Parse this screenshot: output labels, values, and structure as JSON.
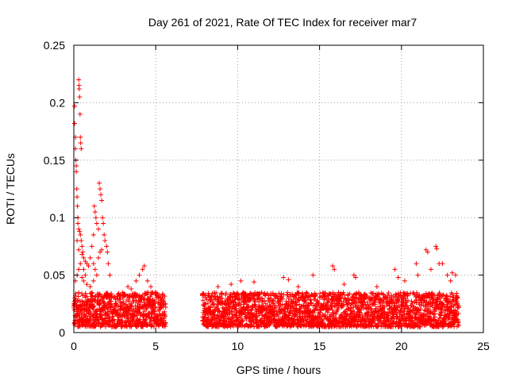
{
  "chart_data": {
    "type": "scatter",
    "title": "Day 261 of 2021, Rate Of TEC Index for receiver mar7",
    "xlabel": "GPS time / hours",
    "ylabel": "ROTI / TECUs",
    "xlim": [
      0,
      25
    ],
    "ylim": [
      0,
      0.25
    ],
    "xticks": [
      0,
      5,
      10,
      15,
      20,
      25
    ],
    "yticks": [
      0,
      0.05,
      0.1,
      0.15,
      0.2,
      0.25
    ],
    "xtick_labels": [
      "0",
      "5",
      "10",
      "15",
      "20",
      "25"
    ],
    "ytick_labels": [
      "0",
      "0.05",
      "0.1",
      "0.15",
      "0.2",
      "0.25"
    ],
    "grid": true,
    "marker": "plus",
    "color": "#ff0000",
    "data_gap_hours": [
      5.6,
      7.85
    ],
    "series": [
      {
        "name": "ROTI",
        "points": [
          [
            0.05,
            0.197
          ],
          [
            0.05,
            0.182
          ],
          [
            0.1,
            0.17
          ],
          [
            0.1,
            0.16
          ],
          [
            0.12,
            0.15
          ],
          [
            0.15,
            0.145
          ],
          [
            0.15,
            0.14
          ],
          [
            0.18,
            0.125
          ],
          [
            0.2,
            0.118
          ],
          [
            0.22,
            0.11
          ],
          [
            0.25,
            0.1
          ],
          [
            0.25,
            0.095
          ],
          [
            0.3,
            0.22
          ],
          [
            0.32,
            0.215
          ],
          [
            0.33,
            0.212
          ],
          [
            0.35,
            0.205
          ],
          [
            0.38,
            0.19
          ],
          [
            0.4,
            0.17
          ],
          [
            0.42,
            0.165
          ],
          [
            0.45,
            0.16
          ],
          [
            0.3,
            0.09
          ],
          [
            0.35,
            0.088
          ],
          [
            0.4,
            0.085
          ],
          [
            0.45,
            0.08
          ],
          [
            0.5,
            0.075
          ],
          [
            0.55,
            0.07
          ],
          [
            0.6,
            0.065
          ],
          [
            0.7,
            0.062
          ],
          [
            0.8,
            0.06
          ],
          [
            0.9,
            0.058
          ],
          [
            0.2,
            0.08
          ],
          [
            0.3,
            0.072
          ],
          [
            0.5,
            0.068
          ],
          [
            0.6,
            0.055
          ],
          [
            0.7,
            0.05
          ],
          [
            1.0,
            0.065
          ],
          [
            1.1,
            0.075
          ],
          [
            1.2,
            0.085
          ],
          [
            1.25,
            0.11
          ],
          [
            1.3,
            0.105
          ],
          [
            1.35,
            0.1
          ],
          [
            1.4,
            0.095
          ],
          [
            1.5,
            0.09
          ],
          [
            1.55,
            0.13
          ],
          [
            1.6,
            0.125
          ],
          [
            1.65,
            0.12
          ],
          [
            1.7,
            0.115
          ],
          [
            1.75,
            0.1
          ],
          [
            1.8,
            0.095
          ],
          [
            1.85,
            0.085
          ],
          [
            1.9,
            0.08
          ],
          [
            2.0,
            0.075
          ],
          [
            2.05,
            0.07
          ],
          [
            2.1,
            0.06
          ],
          [
            2.2,
            0.05
          ],
          [
            1.2,
            0.06
          ],
          [
            1.3,
            0.055
          ],
          [
            1.5,
            0.065
          ],
          [
            1.6,
            0.07
          ],
          [
            1.7,
            0.072
          ],
          [
            0.1,
            0.045
          ],
          [
            0.2,
            0.05
          ],
          [
            0.3,
            0.055
          ],
          [
            0.4,
            0.06
          ],
          [
            0.5,
            0.048
          ],
          [
            0.6,
            0.045
          ],
          [
            0.8,
            0.042
          ],
          [
            1.0,
            0.04
          ],
          [
            1.2,
            0.045
          ],
          [
            1.4,
            0.05
          ],
          [
            3.3,
            0.04
          ],
          [
            3.5,
            0.038
          ],
          [
            3.8,
            0.045
          ],
          [
            4.0,
            0.05
          ],
          [
            4.2,
            0.055
          ],
          [
            4.3,
            0.058
          ],
          [
            4.5,
            0.045
          ],
          [
            4.7,
            0.04
          ],
          [
            5.0,
            0.035
          ],
          [
            5.3,
            0.03
          ],
          [
            21.5,
            0.072
          ],
          [
            21.6,
            0.07
          ],
          [
            22.1,
            0.075
          ],
          [
            22.15,
            0.073
          ],
          [
            22.3,
            0.06
          ],
          [
            22.5,
            0.06
          ],
          [
            20.9,
            0.06
          ],
          [
            19.6,
            0.055
          ],
          [
            19.8,
            0.048
          ],
          [
            22.8,
            0.05
          ],
          [
            23.1,
            0.052
          ],
          [
            23.3,
            0.05
          ],
          [
            15.8,
            0.058
          ],
          [
            15.9,
            0.055
          ],
          [
            17.1,
            0.05
          ],
          [
            17.2,
            0.048
          ],
          [
            14.6,
            0.05
          ],
          [
            13.1,
            0.046
          ],
          [
            12.8,
            0.048
          ],
          [
            11.0,
            0.044
          ],
          [
            10.2,
            0.045
          ],
          [
            9.6,
            0.042
          ],
          [
            20.2,
            0.045
          ],
          [
            18.5,
            0.04
          ],
          [
            16.5,
            0.042
          ],
          [
            13.7,
            0.04
          ],
          [
            8.8,
            0.04
          ],
          [
            21.0,
            0.05
          ],
          [
            21.8,
            0.055
          ],
          [
            23.0,
            0.045
          ]
        ]
      }
    ],
    "dense_band": {
      "description_segments": [
        {
          "x_start": 0.0,
          "x_end": 5.6,
          "y_min": 0.005,
          "y_max": 0.035
        },
        {
          "x_start": 7.85,
          "x_end": 23.5,
          "y_min": 0.005,
          "y_max": 0.035
        }
      ],
      "sample_step_hours": 0.02
    }
  }
}
